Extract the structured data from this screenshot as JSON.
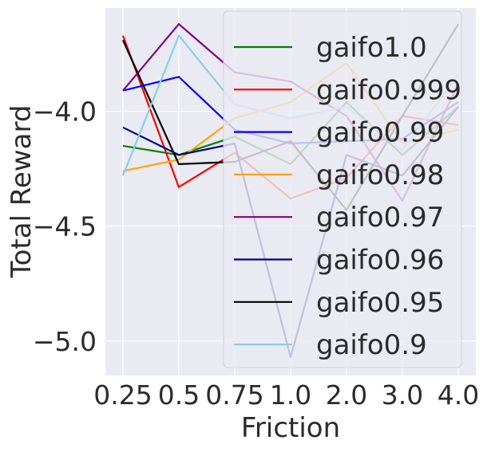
{
  "chart_data": {
    "type": "line",
    "title": "",
    "xlabel": "Friction",
    "ylabel": "Total Reward",
    "categories": [
      "0.25",
      "0.5",
      "0.75",
      "1.0",
      "2.0",
      "3.0",
      "4.0"
    ],
    "yticks": [
      -5.0,
      -4.5,
      -4.0
    ],
    "ytick_labels": [
      "−5.0",
      "−4.5",
      "−4.0"
    ],
    "ylim": [
      -5.15,
      -3.55
    ],
    "grid": true,
    "legend_position": "upper-right",
    "series": [
      {
        "name": "gaifo1.0",
        "color": "#008000",
        "values": [
          -4.15,
          -4.19,
          -4.11,
          -4.23,
          -3.96,
          -4.19,
          -3.98
        ]
      },
      {
        "name": "gaifo0.999",
        "color": "#ff0000",
        "values": [
          -3.67,
          -4.33,
          -4.18,
          -4.38,
          -4.29,
          -4.02,
          -4.06
        ]
      },
      {
        "name": "gaifo0.99",
        "color": "#0000ff",
        "values": [
          -3.91,
          -3.85,
          -4.08,
          -4.14,
          -4.13,
          -4.12,
          -3.96
        ]
      },
      {
        "name": "gaifo0.98",
        "color": "#ffa500",
        "values": [
          -4.26,
          -4.21,
          -4.03,
          -3.96,
          -3.79,
          -4.14,
          -4.08
        ]
      },
      {
        "name": "gaifo0.97",
        "color": "#800080",
        "values": [
          -3.91,
          -3.62,
          -3.83,
          -3.87,
          -4.02,
          -4.39,
          -3.88
        ]
      },
      {
        "name": "gaifo0.96",
        "color": "#00008b",
        "values": [
          -4.07,
          -4.19,
          -4.14,
          -5.07,
          -4.19,
          -4.28,
          -3.98
        ]
      },
      {
        "name": "gaifo0.95",
        "color": "#000000",
        "values": [
          -3.69,
          -4.23,
          -4.22,
          -4.13,
          -4.43,
          -4.02,
          -3.62
        ]
      },
      {
        "name": "gaifo0.9",
        "color": "#87ceeb",
        "values": [
          -4.28,
          -3.67,
          -3.97,
          -4.03,
          -3.98,
          -4.17,
          -3.84
        ]
      }
    ]
  }
}
